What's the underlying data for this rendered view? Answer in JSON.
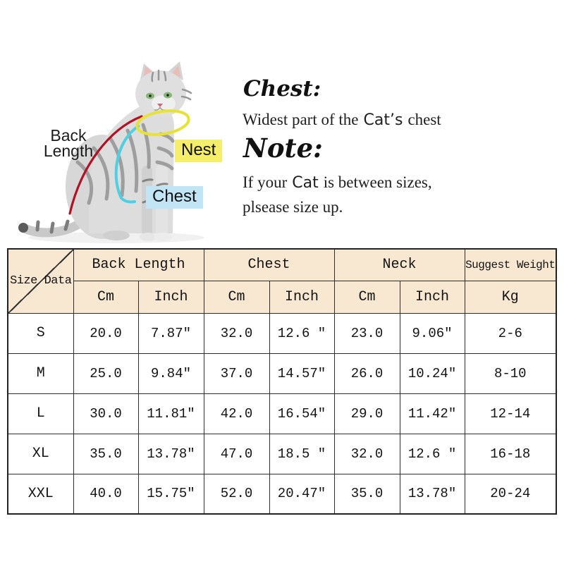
{
  "diagram": {
    "back_length_line1": "Back",
    "back_length_line2": "Length",
    "nest_label": "Nest",
    "chest_label": "Chest"
  },
  "info": {
    "chest_heading": "Chest:",
    "chest_desc_part1": "Widest part of the",
    "chest_desc_part2": "Cat’s",
    "chest_desc_part3": "chest",
    "note_heading": "Note:",
    "note_line1_part1": "If your",
    "note_line1_part2": "Cat",
    "note_line1_part3": "is between sizes,",
    "note_line2": "plsease size up."
  },
  "table": {
    "corner_label": "Size Data",
    "groups": [
      {
        "label": "Back Length",
        "units": [
          "Cm",
          "Inch"
        ]
      },
      {
        "label": "Chest",
        "units": [
          "Cm",
          "Inch"
        ]
      },
      {
        "label": "Neck",
        "units": [
          "Cm",
          "Inch"
        ]
      },
      {
        "label": "Suggest Weight",
        "units": [
          "Kg"
        ]
      }
    ],
    "rows": [
      {
        "size": "S",
        "values": [
          "20.0",
          "7.87″",
          "32.0",
          "12.6 ″",
          "23.0",
          "9.06″",
          "2-6"
        ]
      },
      {
        "size": "M",
        "values": [
          "25.0",
          "9.84″",
          "37.0",
          "14.57″",
          "26.0",
          "10.24″",
          "8-10"
        ]
      },
      {
        "size": "L",
        "values": [
          "30.0",
          "11.81″",
          "42.0",
          "16.54″",
          "29.0",
          "11.42″",
          "12-14"
        ]
      },
      {
        "size": "XL",
        "values": [
          "35.0",
          "13.78″",
          "47.0",
          "18.5 ″",
          "32.0",
          "12.6 ″",
          "16-18"
        ]
      },
      {
        "size": "XXL",
        "values": [
          "40.0",
          "15.75″",
          "52.0",
          "20.47″",
          "35.0",
          "13.78″",
          "20-24"
        ]
      }
    ]
  },
  "colors": {
    "table_header_bg": "#f8e7d1",
    "nest_label_bg": "#f4ee6a",
    "chest_label_bg": "#c1e5f5",
    "back_length_line": "#b01226",
    "neck_circle": "#e7e233",
    "chest_line": "#50cfe2"
  }
}
